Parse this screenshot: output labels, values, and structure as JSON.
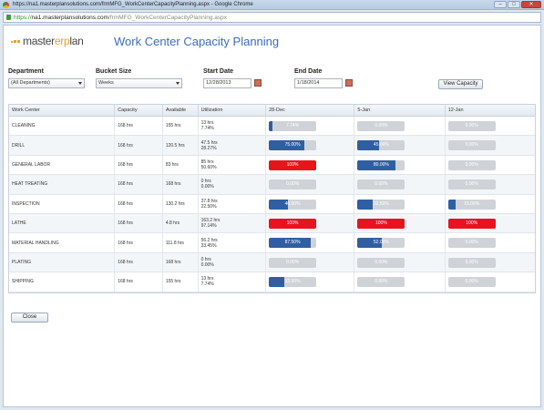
{
  "window": {
    "title": "https://na1.masterplansolutions.com/frmMFG_WorkCenterCapacityPlanning.aspx - Google Chrome",
    "url_scheme": "https://",
    "url_host": "na1.masterplansolutions.com",
    "url_path": "/frmMFG_WorkCenterCapacityPlanning.aspx",
    "minimize": "–",
    "maximize": "□",
    "close": "✕"
  },
  "header": {
    "logo_pre": "master",
    "logo_accent": "erp",
    "logo_post": "lan",
    "title": "Work Center Capacity Planning"
  },
  "filters": {
    "department_label": "Department",
    "department_value": "(All Departments)",
    "bucket_label": "Bucket Size",
    "bucket_value": "Weeks",
    "start_label": "Start Date",
    "start_value": "12/28/2013",
    "end_label": "End Date",
    "end_value": "1/18/2014",
    "view_button": "View Capacity"
  },
  "table": {
    "columns": [
      "Work Center",
      "Capacity",
      "Available",
      "Utilization",
      "28-Dec",
      "5-Jan",
      "12-Jan"
    ],
    "rows": [
      {
        "wc": "CLEANING",
        "cap": "168 hrs",
        "av": "155 hrs",
        "ut1": "13 hrs",
        "ut2": "7.74%",
        "b": [
          7.74,
          0,
          0
        ],
        "l": [
          "7.74%",
          "0.00%",
          "0.00%"
        ]
      },
      {
        "wc": "DRILL",
        "cap": "168 hrs",
        "av": "120.5 hrs",
        "ut1": "47.5 hrs",
        "ut2": "28.27%",
        "b": [
          75.0,
          45.0,
          0
        ],
        "l": [
          "75.00%",
          "45.00%",
          "0.00%"
        ]
      },
      {
        "wc": "GENERAL LABOR",
        "cap": "168 hrs",
        "av": "83 hrs",
        "ut1": "85 hrs",
        "ut2": "50.60%",
        "b": [
          100,
          80.0,
          0
        ],
        "l": [
          "100%",
          "80.00%",
          "0.00%"
        ]
      },
      {
        "wc": "HEAT TREATING",
        "cap": "168 hrs",
        "av": "168 hrs",
        "ut1": "0 hrs",
        "ut2": "0.00%",
        "b": [
          0,
          0,
          0
        ],
        "l": [
          "0.00%",
          "0.00%",
          "0.00%"
        ]
      },
      {
        "wc": "INSPECTION",
        "cap": "168 hrs",
        "av": "130.2 hrs",
        "ut1": "37.8 hrs",
        "ut2": "22.50%",
        "b": [
          40.0,
          32.5,
          15.0
        ],
        "l": [
          "40.00%",
          "32.50%",
          "15.00%"
        ]
      },
      {
        "wc": "LATHE",
        "cap": "168 hrs",
        "av": "4.8 hrs",
        "ut1": "163.2 hrs",
        "ut2": "97.14%",
        "b": [
          100,
          100,
          100
        ],
        "l": [
          "100%",
          "100%",
          "100%"
        ]
      },
      {
        "wc": "MATERIAL HANDLING",
        "cap": "168 hrs",
        "av": "111.8 hrs",
        "ut1": "56.2 hrs",
        "ut2": "33.45%",
        "b": [
          87.5,
          52.0,
          0
        ],
        "l": [
          "87.50%",
          "52.00%",
          "0.00%"
        ]
      },
      {
        "wc": "PLATING",
        "cap": "168 hrs",
        "av": "168 hrs",
        "ut1": "0 hrs",
        "ut2": "0.00%",
        "b": [
          0,
          0,
          0
        ],
        "l": [
          "0.00%",
          "0.00%",
          "0.00%"
        ]
      },
      {
        "wc": "SHIPPING",
        "cap": "168 hrs",
        "av": "155 hrs",
        "ut1": "13 hrs",
        "ut2": "7.74%",
        "b": [
          32.5,
          0,
          0
        ],
        "l": [
          "32.50%",
          "0.00%",
          "0.00%"
        ]
      }
    ]
  },
  "footer": {
    "close_button": "Close"
  },
  "colors": {
    "accent": "#3a6cc0",
    "bar_fill": "#2f5fa2",
    "bar_empty": "#cfd3d8",
    "over_capacity": "#e8141b"
  }
}
